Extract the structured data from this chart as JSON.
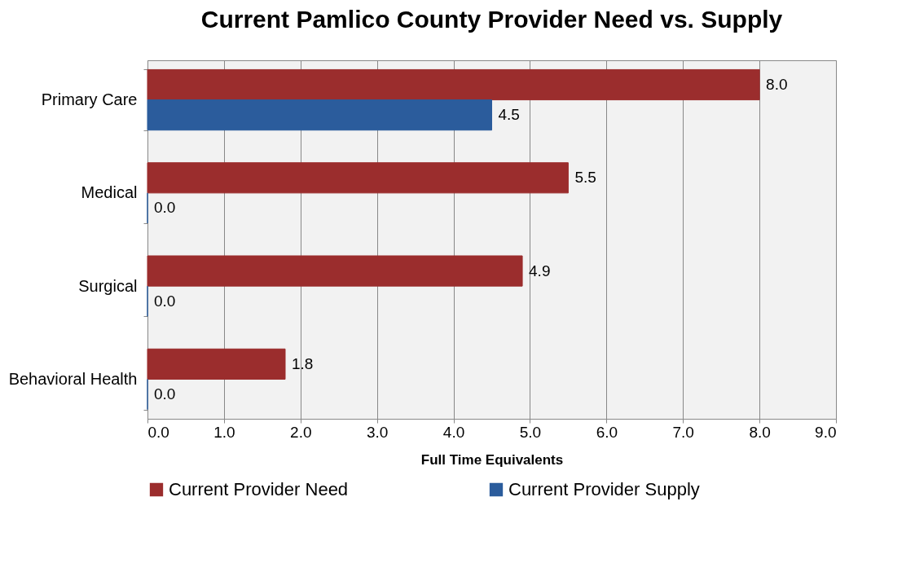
{
  "chart_data": {
    "type": "bar",
    "orientation": "horizontal",
    "title": "Current Pamlico County Provider Need vs. Supply",
    "xlabel": "Full Time Equivalents",
    "categories": [
      "Primary Care",
      "Medical",
      "Surgical",
      "Behavioral Health"
    ],
    "series": [
      {
        "name": "Current Provider Need",
        "color": "#9b2d2d",
        "values": [
          8.0,
          5.5,
          4.9,
          1.8
        ],
        "value_labels": [
          "8.0",
          "5.5",
          "4.9",
          "1.8"
        ]
      },
      {
        "name": "Current Provider Supply",
        "color": "#2b5c9c",
        "values": [
          4.5,
          0,
          0,
          0
        ],
        "value_labels": [
          "4.5",
          "0.0",
          "0.0",
          "0.0"
        ]
      }
    ],
    "xlim": [
      0,
      9
    ],
    "xticks": [
      {
        "value": 0,
        "label": "0.0"
      },
      {
        "value": 1,
        "label": "1.0"
      },
      {
        "value": 2,
        "label": "2.0"
      },
      {
        "value": 3,
        "label": "3.0"
      },
      {
        "value": 4,
        "label": "4.0"
      },
      {
        "value": 5,
        "label": "5.0"
      },
      {
        "value": 6,
        "label": "6.0"
      },
      {
        "value": 7,
        "label": "7.0"
      },
      {
        "value": 8,
        "label": "8.0"
      },
      {
        "value": 9,
        "label": "9.0"
      }
    ],
    "grid": "x",
    "legend": "bottom"
  }
}
